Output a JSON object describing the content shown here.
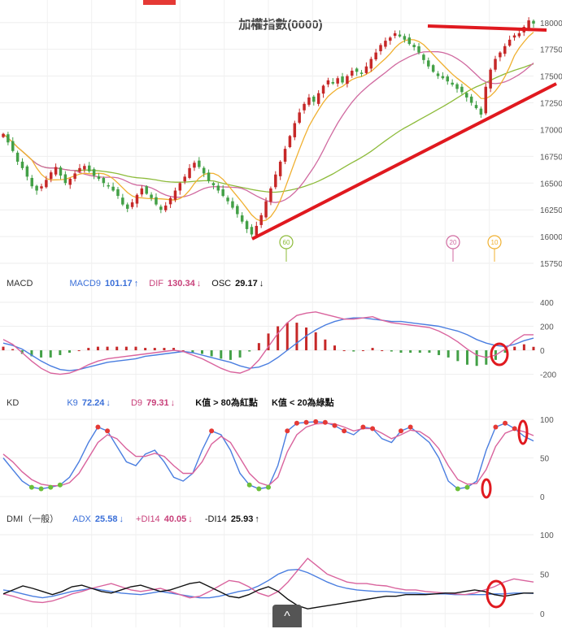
{
  "title": "加權指數(0000)",
  "macd": {
    "label": "MACD",
    "macd9_label": "MACD9",
    "macd9_value": "101.17",
    "macd9_arrow": "↑",
    "dif_label": "DIF",
    "dif_value": "130.34",
    "dif_arrow": "↓",
    "osc_label": "OSC",
    "osc_value": "29.17",
    "osc_arrow": "↓"
  },
  "kd": {
    "label": "KD",
    "k9_label": "K9",
    "k9_value": "72.24",
    "k9_arrow": "↓",
    "d9_label": "D9",
    "d9_value": "79.31",
    "d9_arrow": "↓",
    "note1": "K值 > 80為紅點",
    "note2": "K值 < 20為綠點"
  },
  "dmi": {
    "label": "DMI（一般）",
    "adx_label": "ADX",
    "adx_value": "25.58",
    "adx_arrow": "↓",
    "pdi_label": "+DI14",
    "pdi_value": "40.05",
    "pdi_arrow": "↓",
    "mdi_label": "-DI14",
    "mdi_value": "25.93",
    "mdi_arrow": "↑"
  },
  "scroll_icon": "chevron-up-icon",
  "scroll_glyph": "^",
  "colors": {
    "up": "#c62828",
    "down": "#43a047",
    "ma10": "#f0b030",
    "ma20": "#d06aa0",
    "ma60": "#8dbb3a",
    "blue": "#4a7ee0",
    "pink": "#d9639d",
    "black": "#111111",
    "annot": "#e0191f"
  },
  "chart_data": [
    {
      "type": "candlestick",
      "title": "加權指數(0000)",
      "y_ticks": [
        18000,
        17750,
        17500,
        17250,
        17000,
        16750,
        16500,
        16250,
        16000,
        15750
      ],
      "ylim": [
        15720,
        18150
      ],
      "ma_markers": [
        "60",
        "20",
        "10"
      ],
      "close_series": [
        16960,
        16880,
        16800,
        16700,
        16640,
        16560,
        16470,
        16430,
        16470,
        16530,
        16600,
        16650,
        16570,
        16500,
        16540,
        16590,
        16640,
        16660,
        16610,
        16570,
        16540,
        16500,
        16470,
        16430,
        16380,
        16300,
        16260,
        16320,
        16390,
        16450,
        16400,
        16360,
        16300,
        16250,
        16290,
        16360,
        16430,
        16500,
        16560,
        16640,
        16690,
        16650,
        16590,
        16520,
        16480,
        16430,
        16380,
        16330,
        16270,
        16210,
        16140,
        16070,
        16020,
        16100,
        16200,
        16330,
        16450,
        16580,
        16700,
        16820,
        16940,
        17060,
        17160,
        17240,
        17300,
        17260,
        17340,
        17410,
        17460,
        17430,
        17480,
        17440,
        17500,
        17550,
        17540,
        17520,
        17590,
        17660,
        17720,
        17790,
        17830,
        17860,
        17900,
        17870,
        17840,
        17800,
        17770,
        17720,
        17650,
        17590,
        17540,
        17500,
        17480,
        17450,
        17420,
        17380,
        17350,
        17300,
        17250,
        17200,
        17140,
        17400,
        17560,
        17660,
        17720,
        17780,
        17840,
        17880,
        17900,
        17960,
        18020,
        17990
      ]
    },
    {
      "type": "line",
      "name": "MACD",
      "y_ticks": [
        400,
        200,
        0,
        -200
      ],
      "ylim": [
        -230,
        400
      ],
      "series": [
        {
          "name": "MACD9",
          "values": [
            60,
            40,
            10,
            -40,
            -90,
            -130,
            -160,
            -170,
            -160,
            -140,
            -120,
            -100,
            -90,
            -80,
            -70,
            -50,
            -40,
            -30,
            -20,
            -10,
            -20,
            -40,
            -60,
            -80,
            -100,
            -130,
            -150,
            -140,
            -110,
            -60,
            0,
            60,
            120,
            170,
            210,
            240,
            260,
            270,
            270,
            260,
            250,
            240,
            240,
            230,
            220,
            210,
            200,
            180,
            160,
            130,
            90,
            60,
            40,
            30,
            50,
            80,
            101
          ]
        },
        {
          "name": "DIF",
          "values": [
            90,
            50,
            -20,
            -90,
            -150,
            -190,
            -200,
            -190,
            -160,
            -120,
            -90,
            -70,
            -60,
            -50,
            -40,
            -30,
            -20,
            -10,
            0,
            -10,
            -40,
            -70,
            -110,
            -150,
            -180,
            -190,
            -160,
            -80,
            30,
            140,
            230,
            290,
            310,
            320,
            300,
            280,
            260,
            260,
            270,
            280,
            250,
            230,
            220,
            210,
            200,
            190,
            160,
            120,
            70,
            10,
            -40,
            -60,
            -40,
            10,
            80,
            130,
            130
          ]
        },
        {
          "name": "OSC",
          "values": [
            30,
            10,
            -30,
            -50,
            -60,
            -60,
            -40,
            -20,
            0,
            20,
            30,
            30,
            30,
            30,
            30,
            20,
            20,
            20,
            20,
            0,
            -20,
            -30,
            -50,
            -70,
            -80,
            -60,
            -10,
            60,
            140,
            200,
            230,
            230,
            190,
            150,
            90,
            40,
            0,
            -10,
            0,
            20,
            0,
            -10,
            -20,
            -20,
            -20,
            -20,
            -40,
            -60,
            -90,
            -120,
            -130,
            -120,
            -80,
            -20,
            30,
            50,
            29
          ]
        }
      ]
    },
    {
      "type": "line",
      "name": "KD",
      "y_ticks": [
        100,
        50,
        0
      ],
      "ylim": [
        0,
        100
      ],
      "series": [
        {
          "name": "K9",
          "values": [
            50,
            35,
            20,
            12,
            10,
            12,
            15,
            25,
            45,
            70,
            90,
            85,
            65,
            45,
            40,
            55,
            60,
            45,
            25,
            20,
            30,
            60,
            85,
            80,
            60,
            30,
            15,
            10,
            12,
            40,
            85,
            95,
            96,
            97,
            96,
            92,
            85,
            80,
            90,
            88,
            75,
            70,
            85,
            90,
            80,
            70,
            50,
            20,
            10,
            12,
            20,
            60,
            90,
            95,
            88,
            78,
            72
          ]
        },
        {
          "name": "D9",
          "values": [
            55,
            45,
            32,
            22,
            16,
            14,
            14,
            18,
            30,
            50,
            70,
            80,
            75,
            62,
            52,
            52,
            56,
            52,
            40,
            30,
            30,
            45,
            68,
            78,
            70,
            50,
            30,
            18,
            14,
            25,
            58,
            80,
            90,
            94,
            95,
            94,
            90,
            85,
            88,
            88,
            82,
            75,
            80,
            86,
            84,
            76,
            62,
            40,
            22,
            16,
            17,
            35,
            65,
            82,
            87,
            84,
            79
          ]
        }
      ]
    },
    {
      "type": "line",
      "name": "DMI",
      "y_ticks": [
        100,
        50,
        0
      ],
      "ylim": [
        0,
        100
      ],
      "series": [
        {
          "name": "ADX",
          "values": [
            30,
            28,
            25,
            22,
            20,
            22,
            25,
            28,
            30,
            32,
            30,
            28,
            26,
            25,
            24,
            26,
            28,
            26,
            24,
            22,
            20,
            20,
            22,
            25,
            28,
            30,
            35,
            42,
            50,
            55,
            56,
            52,
            46,
            40,
            35,
            32,
            30,
            29,
            28,
            28,
            27,
            26,
            26,
            25,
            25,
            25,
            24,
            24,
            24,
            24,
            25,
            25,
            26,
            26,
            25.58
          ]
        },
        {
          "name": "+DI14",
          "values": [
            25,
            22,
            18,
            15,
            14,
            16,
            20,
            25,
            28,
            32,
            35,
            38,
            34,
            30,
            28,
            30,
            32,
            28,
            24,
            20,
            22,
            28,
            35,
            42,
            40,
            34,
            26,
            22,
            28,
            40,
            55,
            70,
            60,
            50,
            45,
            40,
            38,
            38,
            36,
            35,
            32,
            30,
            30,
            28,
            27,
            26,
            25,
            24,
            26,
            30,
            34,
            40,
            44,
            42,
            40.05
          ]
        },
        {
          "name": "-DI14",
          "values": [
            25,
            30,
            35,
            32,
            28,
            24,
            28,
            34,
            36,
            32,
            28,
            26,
            30,
            34,
            36,
            32,
            28,
            30,
            34,
            38,
            40,
            34,
            28,
            22,
            20,
            24,
            30,
            34,
            28,
            18,
            10,
            6,
            8,
            10,
            12,
            14,
            16,
            18,
            20,
            22,
            22,
            24,
            24,
            24,
            25,
            26,
            26,
            28,
            30,
            28,
            24,
            22,
            24,
            26,
            25.93
          ]
        }
      ]
    }
  ]
}
